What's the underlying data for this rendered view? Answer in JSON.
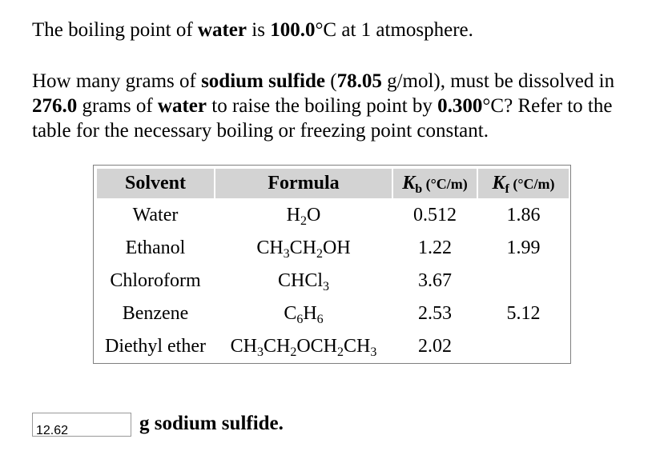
{
  "intro": {
    "pre": "The boiling point of ",
    "solvent": "water",
    "mid": " is ",
    "temp": "100.0",
    "post": "°C at 1 atmosphere."
  },
  "question": {
    "t1": "How many grams of ",
    "solute": "sodium sulfide",
    "t2": " (",
    "molar_mass": "78.05",
    "t3": " g/mol), must be dissolved in ",
    "grams": "276.0",
    "t4": " grams of ",
    "solvent": "water",
    "t5": " to raise the boiling point by ",
    "delta": "0.300",
    "t6": "°C? Refer to the table for the necessary boiling or freezing point constant."
  },
  "table": {
    "headers": {
      "solvent": "Solvent",
      "formula": "Formula",
      "kb_sym": "K",
      "kb_sub": "b",
      "kb_unit": " (°C/m)",
      "kf_sym": "K",
      "kf_sub": "f",
      "kf_unit": " (°C/m)"
    },
    "rows": [
      {
        "solvent": "Water",
        "formula": [
          [
            "H",
            "2"
          ],
          [
            "O",
            ""
          ]
        ],
        "kb": "0.512",
        "kf": "1.86"
      },
      {
        "solvent": "Ethanol",
        "formula": [
          [
            "CH",
            "3"
          ],
          [
            "CH",
            "2"
          ],
          [
            "OH",
            ""
          ]
        ],
        "kb": "1.22",
        "kf": "1.99"
      },
      {
        "solvent": "Chloroform",
        "formula": [
          [
            "CHCl",
            "3"
          ]
        ],
        "kb": "3.67",
        "kf": ""
      },
      {
        "solvent": "Benzene",
        "formula": [
          [
            "C",
            "6"
          ],
          [
            "H",
            "6"
          ]
        ],
        "kb": "2.53",
        "kf": "5.12"
      },
      {
        "solvent": "Diethyl ether",
        "formula": [
          [
            "CH",
            "3"
          ],
          [
            "CH",
            "2"
          ],
          [
            "OCH",
            "2"
          ],
          [
            "CH",
            "3"
          ]
        ],
        "kb": "2.02",
        "kf": ""
      }
    ]
  },
  "answer": {
    "value": "12.62",
    "suffix_bold": "g sodium sulfide",
    "suffix_end": "."
  }
}
